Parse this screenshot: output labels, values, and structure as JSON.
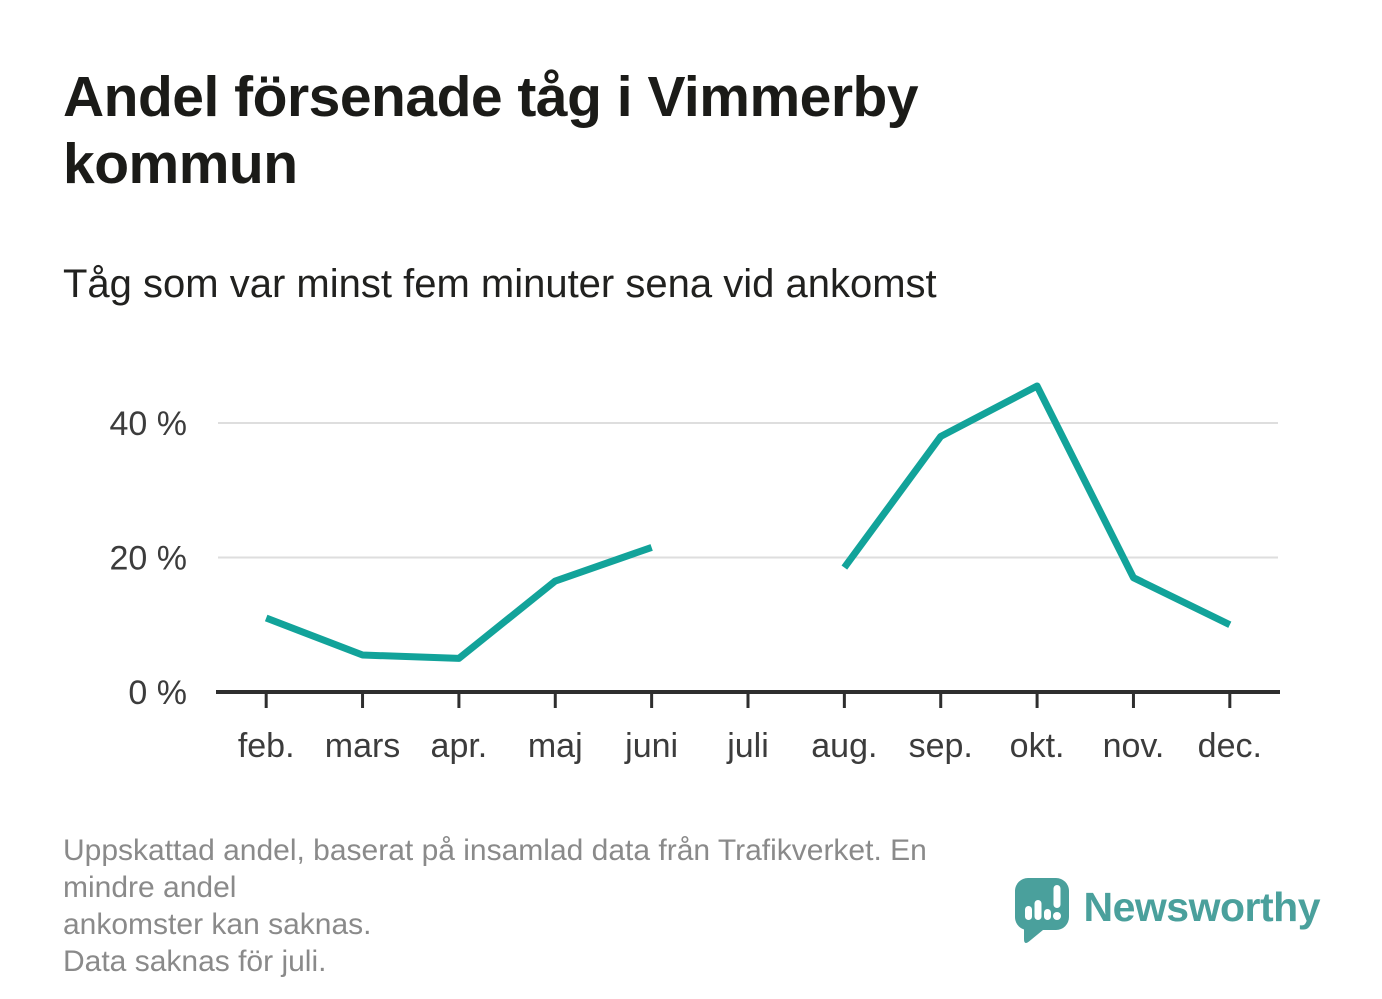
{
  "header": {
    "title": "Andel försenade tåg i Vimmerby kommun",
    "subtitle": "Tåg som var minst fem minuter sena vid ankomst"
  },
  "chart_data": {
    "type": "line",
    "title": "Andel försenade tåg i Vimmerby kommun",
    "subtitle": "Tåg som var minst fem minuter sena vid ankomst",
    "categories": [
      "feb.",
      "mars",
      "apr.",
      "maj",
      "juni",
      "juli",
      "aug.",
      "sep.",
      "okt.",
      "nov.",
      "dec."
    ],
    "series": [
      {
        "name": "Andel försenade tåg (minst 5 min sena)",
        "values": [
          11,
          5.5,
          5,
          16.5,
          21.5,
          null,
          18.5,
          38,
          45.5,
          17,
          10
        ]
      }
    ],
    "unit": "%",
    "xlabel": "",
    "ylabel": "",
    "ylim": [
      0,
      49
    ],
    "yticks": [
      0,
      20,
      40
    ],
    "ytick_labels": [
      "0 %",
      "20 %",
      "40 %"
    ],
    "grid": "horizontal",
    "legend": "none",
    "line_color": "#12a39a",
    "gridline_color": "#dedede",
    "axis_color": "#2e2e2e",
    "missing_data": "juli"
  },
  "footer": {
    "lines": [
      "Uppskattad andel, baserat på insamlad data från Trafikverket. En mindre andel",
      "ankomster kan saknas.",
      "Data saknas för juli."
    ]
  },
  "branding": {
    "logo_text": "Newsworthy",
    "logo_color": "#4aa09c"
  }
}
